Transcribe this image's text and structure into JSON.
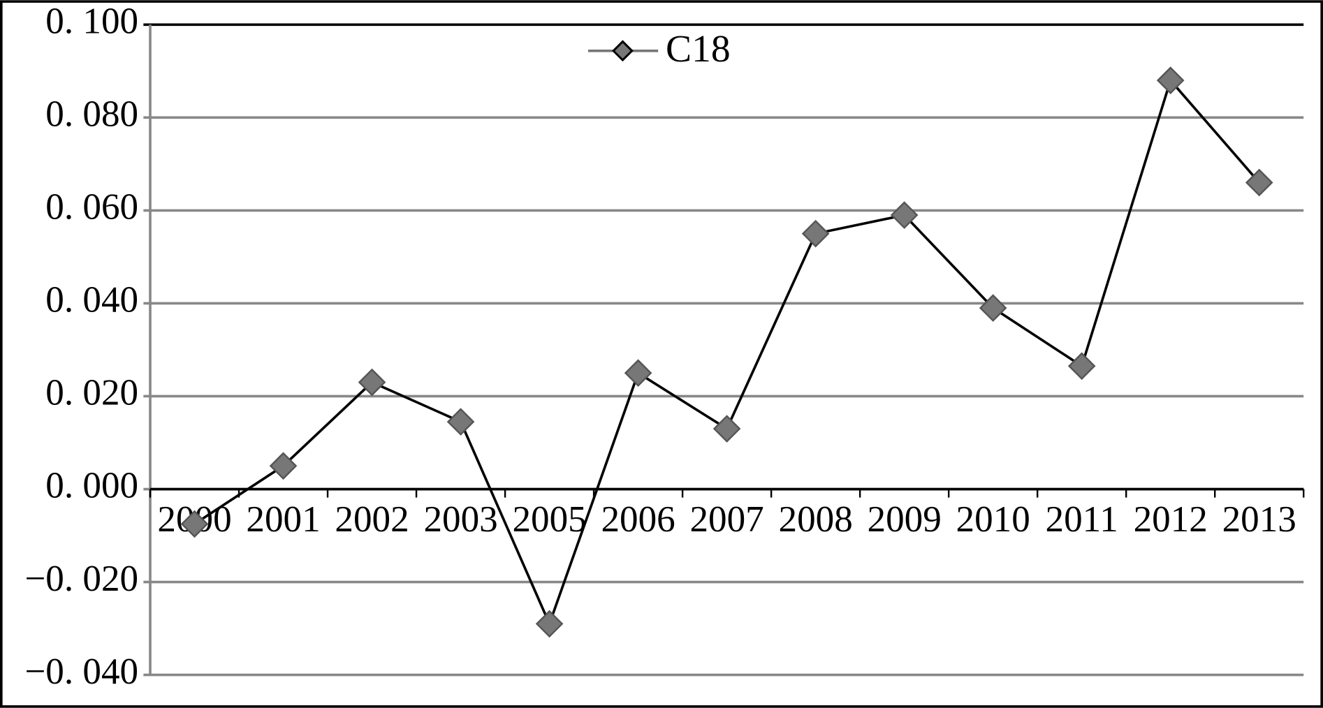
{
  "chart_data": {
    "type": "line",
    "categories": [
      "2000",
      "2001",
      "2002",
      "2003",
      "2005",
      "2006",
      "2007",
      "2008",
      "2009",
      "2010",
      "2011",
      "2012",
      "2013"
    ],
    "series": [
      {
        "name": "C18",
        "color": "#000000",
        "marker_color": "#777777",
        "values": [
          -0.0075,
          0.005,
          0.023,
          0.0145,
          -0.029,
          0.025,
          0.013,
          0.055,
          0.059,
          0.039,
          0.0265,
          0.088,
          0.066
        ]
      }
    ],
    "ylim": [
      -0.04,
      0.1
    ],
    "yticks": [
      {
        "value": -0.04,
        "label": "−0. 040"
      },
      {
        "value": -0.02,
        "label": "−0. 020"
      },
      {
        "value": 0,
        "label": "0. 000"
      },
      {
        "value": 0.02,
        "label": "0. 020"
      },
      {
        "value": 0.04,
        "label": "0. 040"
      },
      {
        "value": 0.06,
        "label": "0. 060"
      },
      {
        "value": 0.08,
        "label": "0. 080"
      },
      {
        "value": 0.1,
        "label": "0. 100"
      }
    ],
    "grid": true,
    "legend": "top"
  }
}
